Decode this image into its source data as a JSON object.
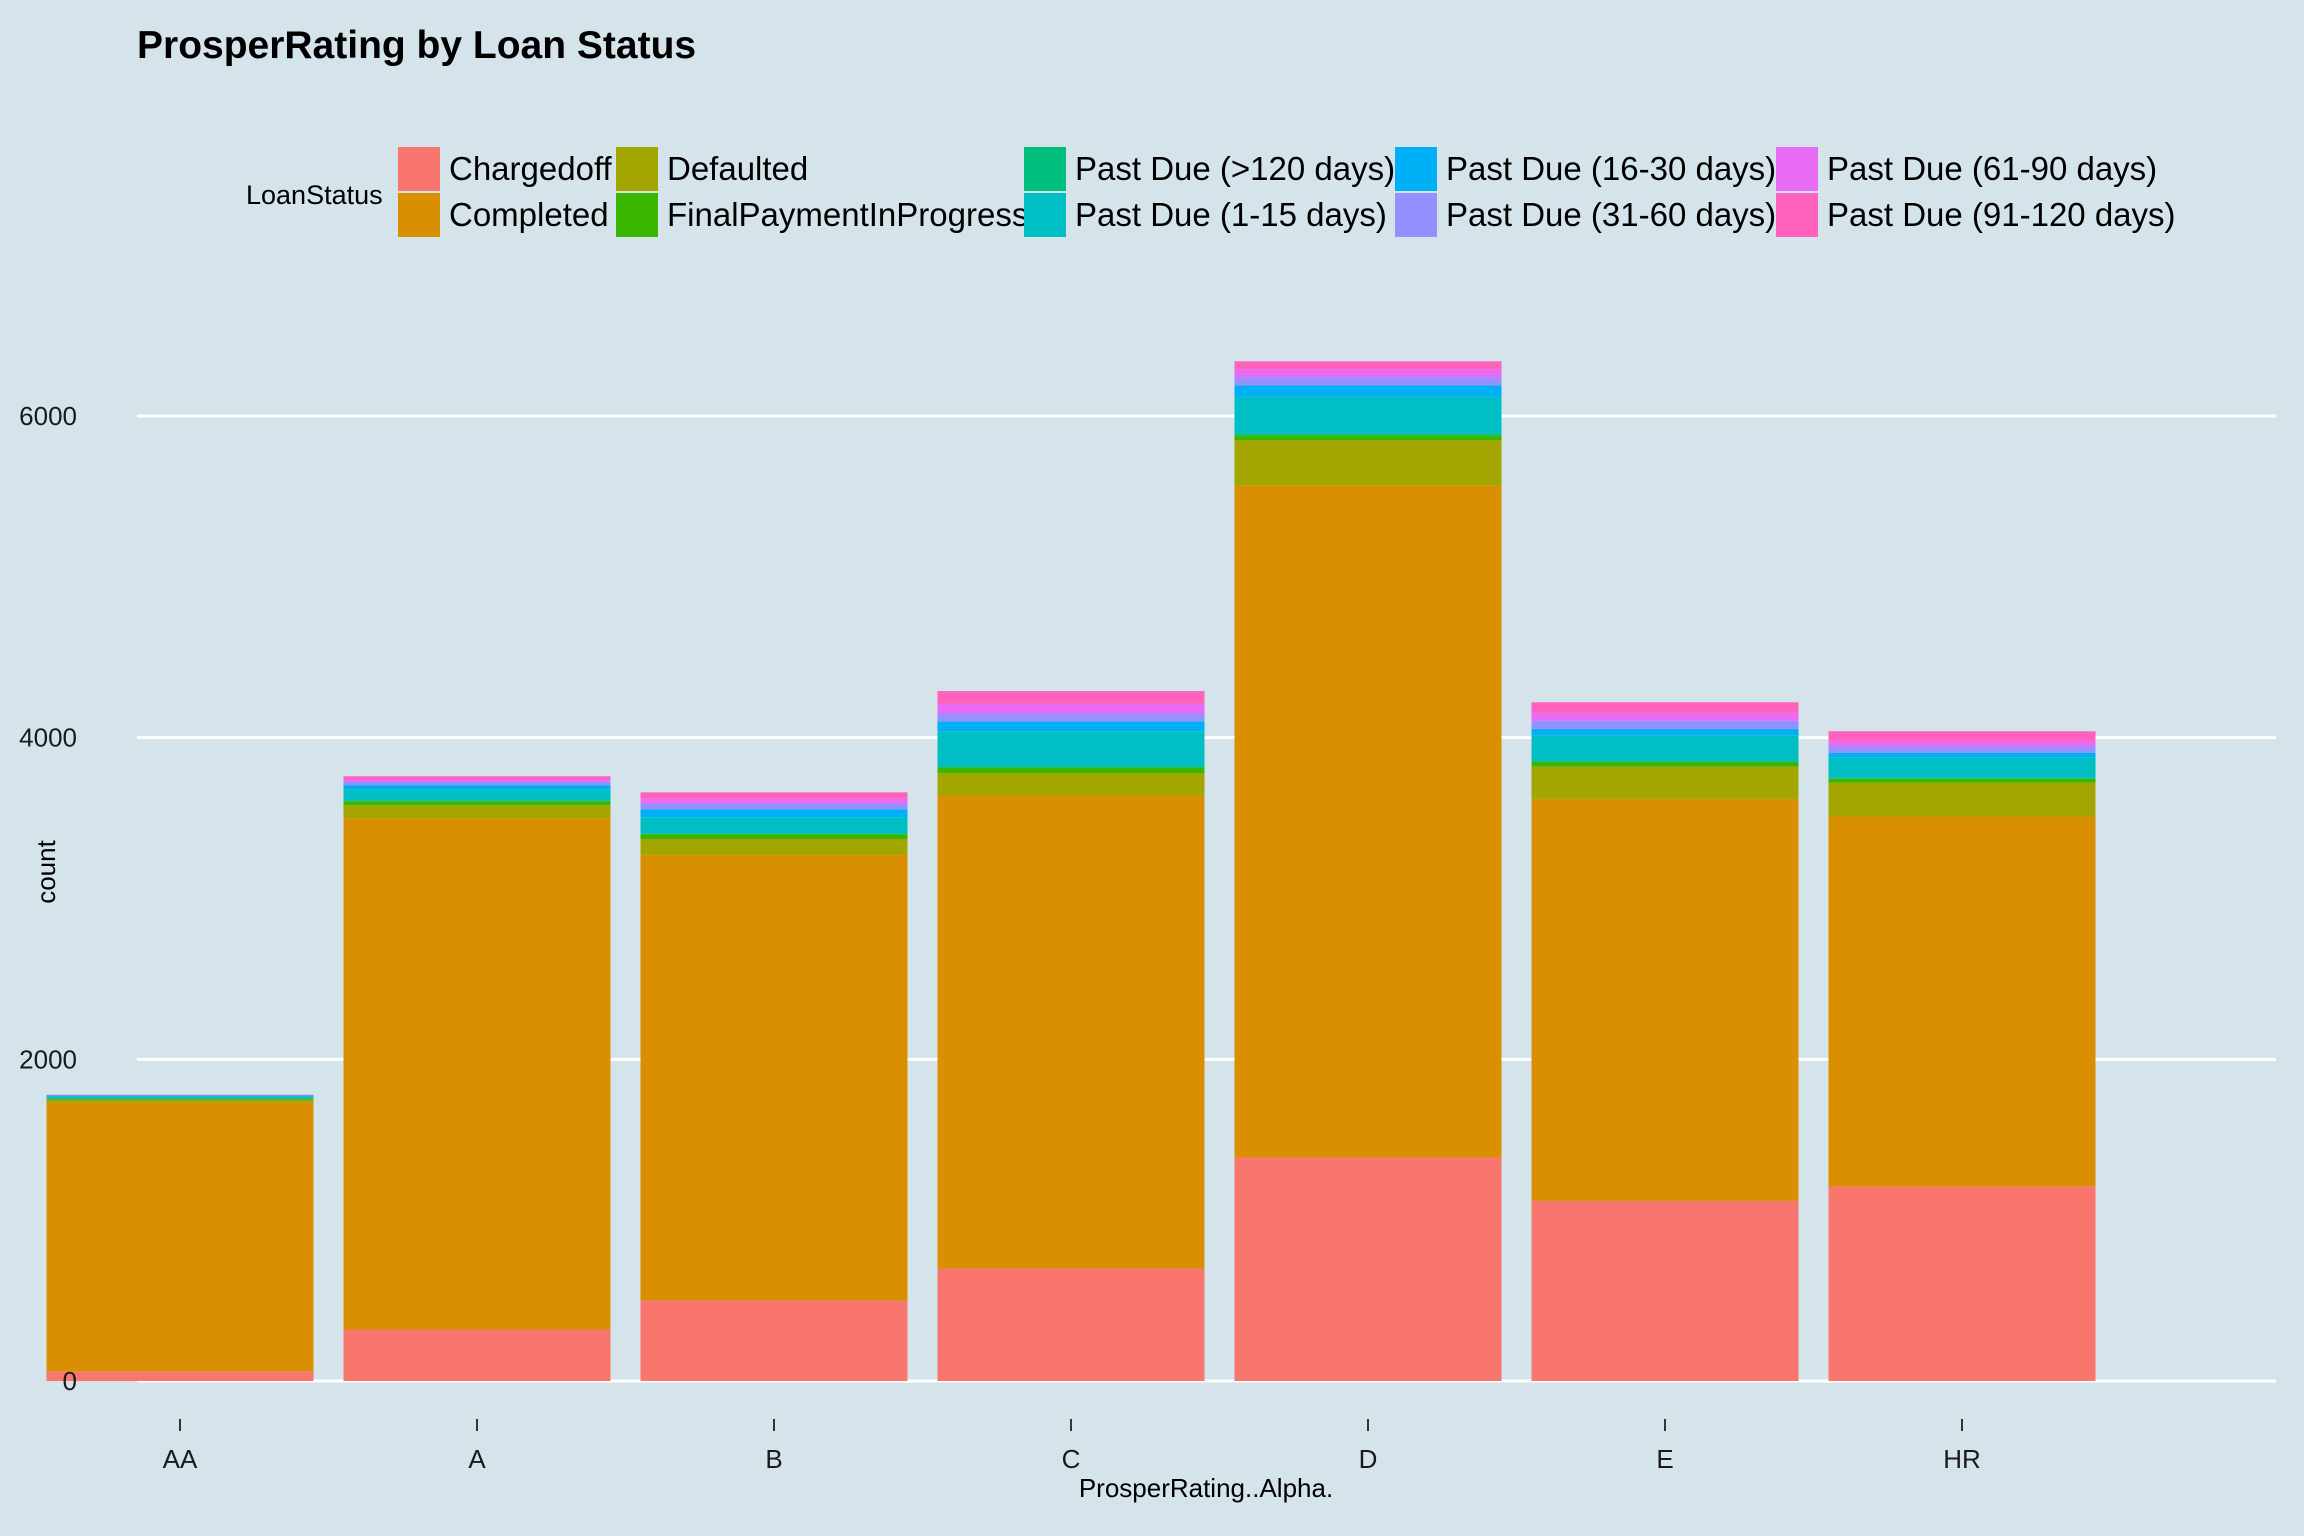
{
  "chart_data": {
    "type": "bar",
    "stacked": true,
    "title": "ProsperRating by Loan Status",
    "xlabel": "ProsperRating..Alpha.",
    "ylabel": "count",
    "ylim": [
      0,
      6600
    ],
    "yticks": [
      "0",
      "2000",
      "4000",
      "6000"
    ],
    "ytick_values": [
      0,
      2000,
      4000,
      6000
    ],
    "grid": true,
    "legend_position": "top",
    "legend_title": "LoanStatus",
    "categories": [
      "AA",
      "A",
      "B",
      "C",
      "D",
      "E",
      "HR"
    ],
    "series": [
      {
        "name": "Chargedoff",
        "color": "#f8766d",
        "values": [
          60,
          320,
          500,
          700,
          1390,
          1120,
          1210
        ]
      },
      {
        "name": "Completed",
        "color": "#d89000",
        "values": [
          1670,
          3180,
          2770,
          2940,
          4180,
          2500,
          2300
        ]
      },
      {
        "name": "Defaulted",
        "color": "#a3a500",
        "values": [
          20,
          80,
          100,
          140,
          280,
          200,
          210
        ]
      },
      {
        "name": "FinalPaymentInProgress",
        "color": "#39b600",
        "values": [
          5,
          25,
          30,
          35,
          30,
          30,
          25
        ]
      },
      {
        "name": "Past Due (>120 days)",
        "color": "#00bf7d",
        "values": [
          0,
          5,
          5,
          5,
          10,
          5,
          5
        ]
      },
      {
        "name": "Past Due (1-15 days)",
        "color": "#00bfc4",
        "values": [
          15,
          70,
          100,
          220,
          230,
          160,
          125
        ]
      },
      {
        "name": "Past Due (16-30 days)",
        "color": "#00b0f6",
        "values": [
          5,
          25,
          50,
          60,
          70,
          40,
          30
        ]
      },
      {
        "name": "Past Due (31-60 days)",
        "color": "#9590ff",
        "values": [
          3,
          20,
          35,
          50,
          50,
          50,
          40
        ]
      },
      {
        "name": "Past Due (61-90 days)",
        "color": "#e76bf3",
        "values": [
          2,
          15,
          30,
          60,
          50,
          50,
          35
        ]
      },
      {
        "name": "Past Due (91-120 days)",
        "color": "#ff62bc",
        "values": [
          0,
          20,
          40,
          80,
          50,
          65,
          60
        ]
      }
    ]
  }
}
